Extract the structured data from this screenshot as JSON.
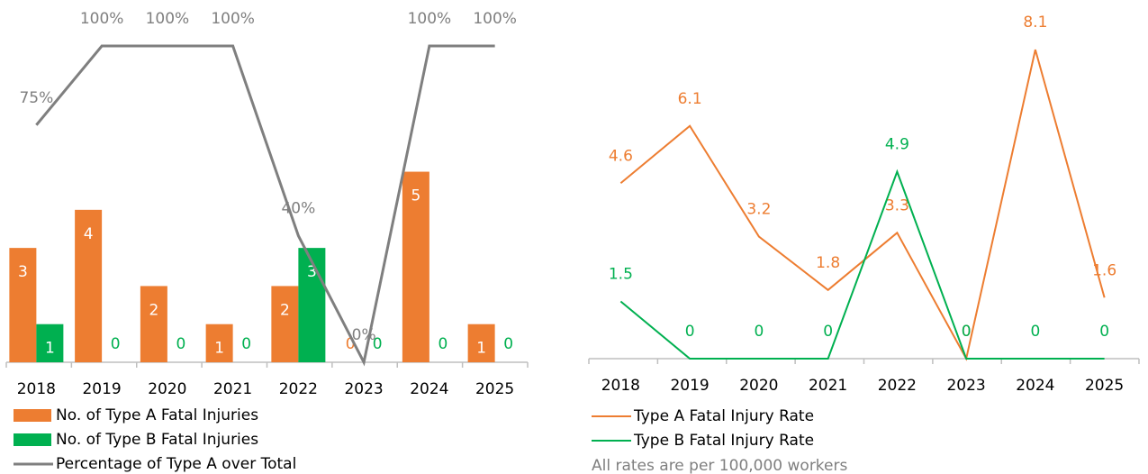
{
  "chart_data": [
    {
      "type": "bar",
      "categories": [
        "2018",
        "2019",
        "2020",
        "2021",
        "2022",
        "2023",
        "2024",
        "2025"
      ],
      "ylim": [
        0,
        8.3
      ],
      "y2lim": [
        0,
        100
      ],
      "series": [
        {
          "name": "No. of Type A Fatal Injuries",
          "color": "#ED7D31",
          "values": [
            3,
            4,
            2,
            1,
            2,
            0,
            5,
            1
          ]
        },
        {
          "name": "No. of Type B Fatal Injuries",
          "color": "#00B050",
          "values": [
            1,
            0,
            0,
            0,
            3,
            0,
            0,
            0
          ]
        },
        {
          "name": "Percentage of Type A over Total",
          "color": "#7F7F7F",
          "type": "line",
          "axis": "y2",
          "values": [
            75,
            100,
            100,
            100,
            40,
            0,
            100,
            100
          ],
          "value_labels": [
            "75%",
            "100%",
            "100%",
            "100%",
            "40%",
            "0%",
            "100%",
            "100%"
          ]
        }
      ]
    },
    {
      "type": "line",
      "categories": [
        "2018",
        "2019",
        "2020",
        "2021",
        "2022",
        "2023",
        "2024",
        "2025"
      ],
      "ylim": [
        0,
        9
      ],
      "note": "All rates are per 100,000 workers",
      "series": [
        {
          "name": "Type A Fatal Injury Rate",
          "color": "#ED7D31",
          "values": [
            4.6,
            6.1,
            3.2,
            1.8,
            3.3,
            0,
            8.1,
            1.6
          ]
        },
        {
          "name": "Type B Fatal Injury Rate",
          "color": "#00B050",
          "values": [
            1.5,
            0,
            0,
            0,
            4.9,
            0,
            0,
            0
          ]
        }
      ]
    }
  ]
}
